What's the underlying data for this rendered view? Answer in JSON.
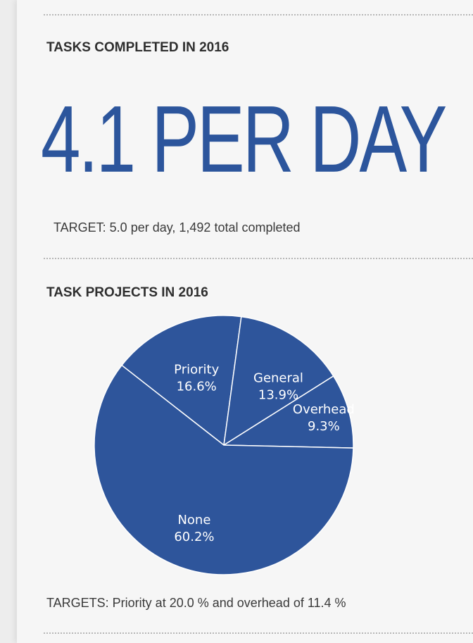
{
  "section1": {
    "title": "TASKS COMPLETED IN 2016",
    "headline": "4.1 PER DAY",
    "target_note": "TARGET: 5.0 per day, 1,492 total completed"
  },
  "section2": {
    "title": "TASK PROJECTS IN 2016",
    "targets_note": "TARGETS: Priority at 20.0 % and overhead of 11.4 %"
  },
  "colors": {
    "accent": "#2c559c",
    "pie_fill": "#2e559b",
    "slice_line": "#ffffff"
  },
  "chart_data": {
    "type": "pie",
    "slices": [
      {
        "label": "Priority",
        "value": 16.6,
        "display": "16.6%"
      },
      {
        "label": "General",
        "value": 13.9,
        "display": "13.9%"
      },
      {
        "label": "Overhead",
        "value": 9.3,
        "display": "9.3%"
      },
      {
        "label": "None",
        "value": 60.2,
        "display": "60.2%"
      }
    ]
  }
}
